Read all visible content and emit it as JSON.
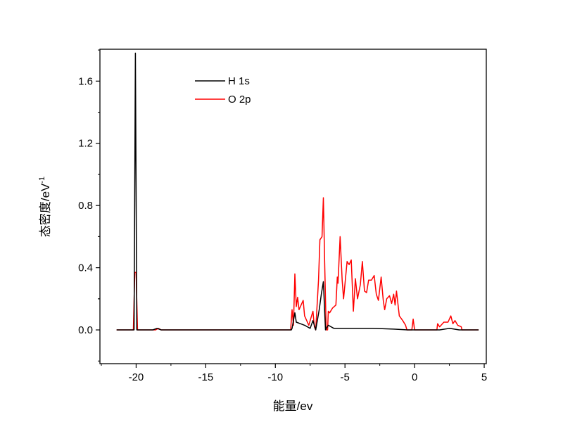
{
  "chart_data": {
    "type": "line",
    "title": "",
    "xlabel": "能量/ev",
    "ylabel": "态密度/eV",
    "ylabel_superscript": "-1",
    "xlim": [
      -22.6,
      5.15
    ],
    "ylim": [
      -0.217,
      1.805
    ],
    "x_ticks": [
      -20,
      -15,
      -10,
      -5,
      0,
      5
    ],
    "x_tick_labels": [
      "-20",
      "-15",
      "-10",
      "-5",
      "0",
      "5"
    ],
    "y_ticks": [
      0.0,
      0.4,
      0.8,
      1.2,
      1.6
    ],
    "y_tick_labels": [
      "0.0",
      "0.4",
      "0.8",
      "1.2",
      "1.6"
    ],
    "grid": false,
    "legend_position": "top-left",
    "series": [
      {
        "name": "H 1s",
        "color": "#000000",
        "points": [
          [
            -21.4,
            0
          ],
          [
            -20.15,
            0
          ],
          [
            -20.05,
            1.78
          ],
          [
            -19.95,
            0
          ],
          [
            -18.8,
            0
          ],
          [
            -18.5,
            0.01
          ],
          [
            -18.2,
            0
          ],
          [
            -8.85,
            0
          ],
          [
            -8.8,
            0.01
          ],
          [
            -8.6,
            0.11
          ],
          [
            -8.5,
            0.05
          ],
          [
            -8.2,
            0.04
          ],
          [
            -7.9,
            0.03
          ],
          [
            -7.5,
            0.01
          ],
          [
            -7.3,
            0.06
          ],
          [
            -7.1,
            0
          ],
          [
            -6.85,
            0.13
          ],
          [
            -6.7,
            0.23
          ],
          [
            -6.55,
            0.31
          ],
          [
            -6.4,
            0
          ],
          [
            -6.2,
            0.03
          ],
          [
            -5.8,
            0.01
          ],
          [
            -4.5,
            0.01
          ],
          [
            -3.0,
            0.01
          ],
          [
            -1.5,
            0.005
          ],
          [
            -0.5,
            0
          ],
          [
            1.8,
            0
          ],
          [
            2.5,
            0.01
          ],
          [
            3.2,
            0
          ],
          [
            4.6,
            0
          ]
        ]
      },
      {
        "name": "O 2p",
        "color": "#ff0000",
        "points": [
          [
            -21.4,
            0
          ],
          [
            -20.2,
            0
          ],
          [
            -20.1,
            0.37
          ],
          [
            -20.0,
            0.37
          ],
          [
            -19.9,
            0
          ],
          [
            -18.6,
            0
          ],
          [
            -18.4,
            0.01
          ],
          [
            -18.2,
            0
          ],
          [
            -8.9,
            0
          ],
          [
            -8.8,
            0.13
          ],
          [
            -8.7,
            0.03
          ],
          [
            -8.6,
            0.36
          ],
          [
            -8.5,
            0.15
          ],
          [
            -8.4,
            0.21
          ],
          [
            -8.3,
            0.13
          ],
          [
            -8.0,
            0.19
          ],
          [
            -7.9,
            0.09
          ],
          [
            -7.6,
            0.03
          ],
          [
            -7.4,
            0.09
          ],
          [
            -7.3,
            0.12
          ],
          [
            -7.2,
            0.02
          ],
          [
            -7.1,
            0
          ],
          [
            -6.9,
            0.32
          ],
          [
            -6.8,
            0.58
          ],
          [
            -6.65,
            0.6
          ],
          [
            -6.55,
            0.85
          ],
          [
            -6.45,
            0.4
          ],
          [
            -6.35,
            0
          ],
          [
            -6.25,
            0
          ],
          [
            -6.2,
            0.12
          ],
          [
            -6.1,
            0.11
          ],
          [
            -5.9,
            0.14
          ],
          [
            -5.65,
            0.16
          ],
          [
            -5.55,
            0.34
          ],
          [
            -5.5,
            0.3
          ],
          [
            -5.35,
            0.6
          ],
          [
            -5.2,
            0.32
          ],
          [
            -5.1,
            0.2
          ],
          [
            -4.85,
            0.44
          ],
          [
            -4.7,
            0.42
          ],
          [
            -4.55,
            0.45
          ],
          [
            -4.4,
            0.12
          ],
          [
            -4.25,
            0.33
          ],
          [
            -4.1,
            0.2
          ],
          [
            -3.9,
            0.29
          ],
          [
            -3.75,
            0.44
          ],
          [
            -3.6,
            0.25
          ],
          [
            -3.45,
            0.24
          ],
          [
            -3.3,
            0.32
          ],
          [
            -3.1,
            0.32
          ],
          [
            -2.9,
            0.35
          ],
          [
            -2.75,
            0.23
          ],
          [
            -2.6,
            0.19
          ],
          [
            -2.4,
            0.34
          ],
          [
            -2.25,
            0.19
          ],
          [
            -2.15,
            0.13
          ],
          [
            -2.0,
            0.2
          ],
          [
            -1.8,
            0.22
          ],
          [
            -1.65,
            0.17
          ],
          [
            -1.5,
            0.23
          ],
          [
            -1.4,
            0.16
          ],
          [
            -1.3,
            0.25
          ],
          [
            -1.1,
            0.09
          ],
          [
            -0.85,
            0.06
          ],
          [
            -0.65,
            0.03
          ],
          [
            -0.55,
            0
          ],
          [
            -0.2,
            0
          ],
          [
            -0.1,
            0.07
          ],
          [
            0.0,
            0
          ],
          [
            1.6,
            0
          ],
          [
            1.65,
            0.04
          ],
          [
            1.8,
            0.02
          ],
          [
            2.1,
            0.05
          ],
          [
            2.4,
            0.05
          ],
          [
            2.6,
            0.09
          ],
          [
            2.75,
            0.04
          ],
          [
            2.9,
            0.06
          ],
          [
            3.1,
            0.03
          ],
          [
            3.35,
            0.02
          ],
          [
            3.4,
            0
          ],
          [
            4.6,
            0
          ]
        ]
      }
    ]
  }
}
